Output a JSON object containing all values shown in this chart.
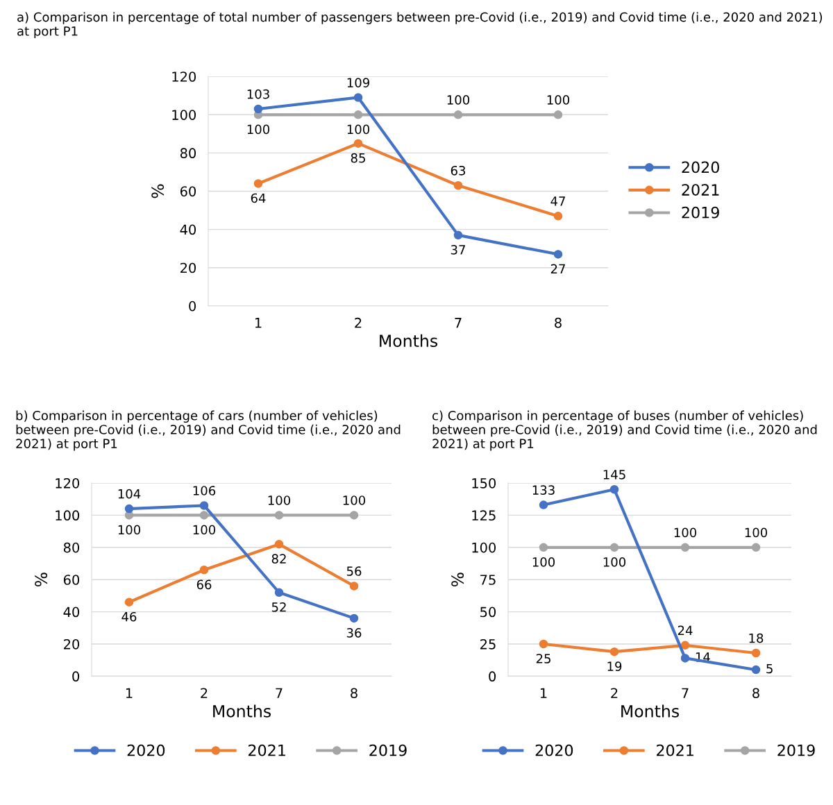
{
  "chart_data": [
    {
      "type": "line",
      "title": "a) Comparison in percentage of total number of passengers between pre-Covid (i.e., 2019) and Covid time (i.e., 2020 and 2021) at port P1",
      "xlabel": "Months",
      "ylabel": "%",
      "categories": [
        "1",
        "2",
        "7",
        "8"
      ],
      "ylim": [
        0,
        120
      ],
      "yticks": [
        0,
        20,
        40,
        60,
        80,
        100,
        120
      ],
      "grid": "y",
      "legend": "right",
      "marker": "circle",
      "data_labels": true,
      "series": [
        {
          "name": "2020",
          "color": "#4472c4",
          "values": [
            103,
            109,
            37,
            27
          ]
        },
        {
          "name": "2021",
          "color": "#ed7d31",
          "values": [
            64,
            85,
            63,
            47
          ]
        },
        {
          "name": "2019",
          "color": "#a5a5a5",
          "values": [
            100,
            100,
            100,
            100
          ]
        }
      ]
    },
    {
      "type": "line",
      "title": "b) Comparison in percentage of cars (number of vehicles) between pre-Covid (i.e., 2019) and Covid time (i.e., 2020 and 2021) at port P1",
      "xlabel": "Months",
      "ylabel": "%",
      "categories": [
        "1",
        "2",
        "7",
        "8"
      ],
      "ylim": [
        0,
        120
      ],
      "yticks": [
        0,
        20,
        40,
        60,
        80,
        100,
        120
      ],
      "grid": "y",
      "legend": "bottom",
      "marker": "circle",
      "data_labels": true,
      "series": [
        {
          "name": "2020",
          "color": "#4472c4",
          "values": [
            104,
            106,
            52,
            36
          ]
        },
        {
          "name": "2021",
          "color": "#ed7d31",
          "values": [
            46,
            66,
            82,
            56
          ]
        },
        {
          "name": "2019",
          "color": "#a5a5a5",
          "values": [
            100,
            100,
            100,
            100
          ]
        }
      ]
    },
    {
      "type": "line",
      "title": "c) Comparison in percentage of buses (number of vehicles) between pre-Covid (i.e., 2019) and Covid time (i.e., 2020 and 2021) at port P1",
      "xlabel": "Months",
      "ylabel": "%",
      "categories": [
        "1",
        "2",
        "7",
        "8"
      ],
      "ylim": [
        0,
        150
      ],
      "yticks": [
        0,
        25,
        50,
        75,
        100,
        125,
        150
      ],
      "grid": "y",
      "legend": "bottom",
      "marker": "circle",
      "data_labels": true,
      "series": [
        {
          "name": "2020",
          "color": "#4472c4",
          "values": [
            133,
            145,
            14,
            5
          ]
        },
        {
          "name": "2021",
          "color": "#ed7d31",
          "values": [
            25,
            19,
            24,
            18
          ]
        },
        {
          "name": "2019",
          "color": "#a5a5a5",
          "values": [
            100,
            100,
            100,
            100
          ]
        }
      ]
    }
  ]
}
